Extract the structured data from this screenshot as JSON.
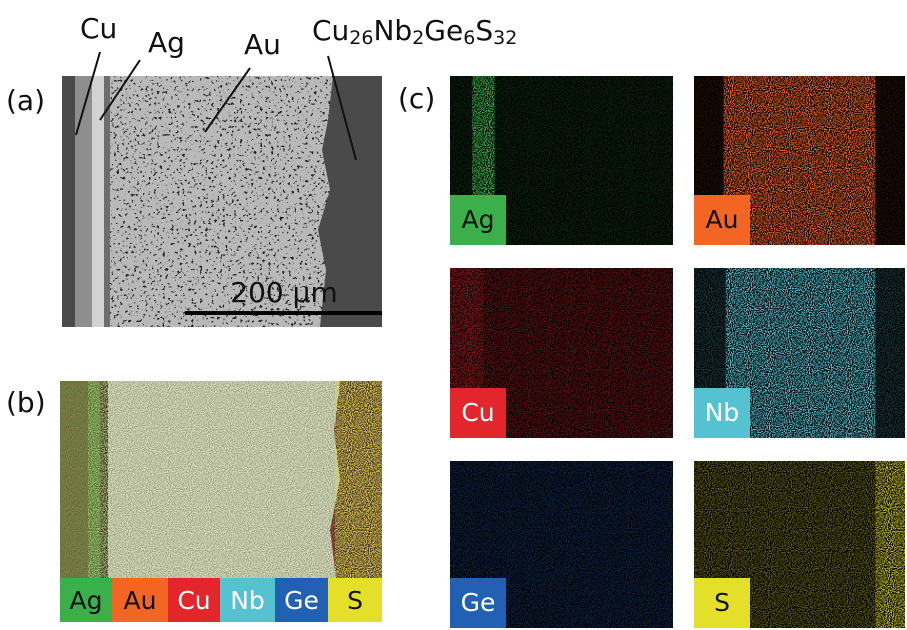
{
  "panel_a": {
    "label": "(a)",
    "callouts": [
      "Cu",
      "Ag",
      "Au"
    ],
    "formula": [
      {
        "text": "Cu",
        "sub": "26"
      },
      {
        "text": "Nb",
        "sub": "2"
      },
      {
        "text": "Ge",
        "sub": "6"
      },
      {
        "text": "S",
        "sub": "32"
      }
    ],
    "scale_bar": "200 µm"
  },
  "panel_b": {
    "label": "(b)",
    "legend": [
      "Ag",
      "Au",
      "Cu",
      "Nb",
      "Ge",
      "S"
    ]
  },
  "panel_c": {
    "label": "(c)",
    "maps": [
      "Ag",
      "Au",
      "Cu",
      "Nb",
      "Ge",
      "S"
    ]
  }
}
